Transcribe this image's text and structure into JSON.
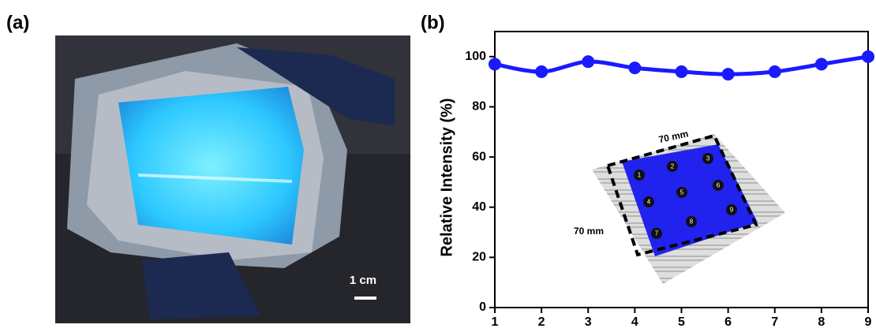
{
  "panel_labels": [
    "(a)",
    "(b)"
  ],
  "photo": {
    "scale_bar": "1 cm"
  },
  "inset": {
    "width_label": "70 mm",
    "height_label": "70 mm",
    "points": [
      "1",
      "2",
      "3",
      "4",
      "5",
      "6",
      "7",
      "8",
      "9"
    ]
  },
  "chart_data": {
    "type": "line",
    "y_label": "Relative Intensity (%)",
    "x": [
      1,
      2,
      3,
      4,
      5,
      6,
      7,
      8,
      9
    ],
    "series": [
      {
        "name": "Relative Intensity",
        "color": "#1a1aff",
        "values": [
          97,
          94,
          98,
          95.5,
          94,
          93,
          94,
          97,
          100
        ]
      }
    ],
    "xlim": [
      1,
      9
    ],
    "xticks": [
      1,
      2,
      3,
      4,
      5,
      6,
      7,
      8,
      9
    ],
    "ylim": [
      0,
      110
    ],
    "yticks": [
      0,
      20,
      40,
      60,
      80,
      100
    ],
    "grid": false
  }
}
